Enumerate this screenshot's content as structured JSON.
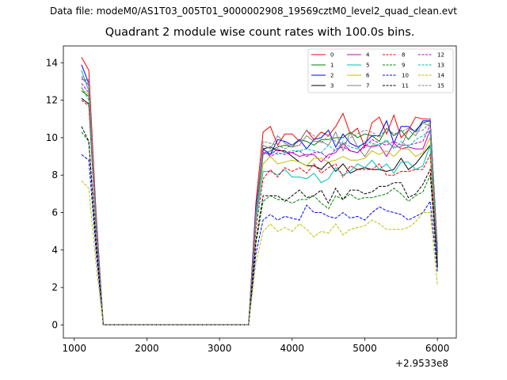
{
  "suptitle": "Data file: modeM0/AS1T03_005T01_9000002908_19569cztM0_level2_quad_clean.evt",
  "chart_data": {
    "type": "line",
    "title": "Quadrant 2 module wise count rates with 100.0s bins.",
    "xlabel": "",
    "ylabel": "",
    "x_offset_label": "+2.9533e8",
    "xlim": [
      850,
      6260
    ],
    "ylim": [
      -0.7,
      14.9
    ],
    "xticks": [
      1000,
      2000,
      3000,
      4000,
      5000,
      6000
    ],
    "yticks": [
      0,
      2,
      4,
      6,
      8,
      10,
      12,
      14
    ],
    "grid": false,
    "legend_position": "top-right",
    "x": [
      1100,
      1200,
      1300,
      1400,
      1500,
      1600,
      1700,
      1800,
      1900,
      2000,
      2100,
      2200,
      2300,
      2400,
      2500,
      2600,
      2700,
      2800,
      2900,
      3000,
      3100,
      3200,
      3300,
      3400,
      3500,
      3600,
      3700,
      3800,
      3900,
      4000,
      4100,
      4200,
      4300,
      4400,
      4500,
      4600,
      4700,
      4800,
      4900,
      5000,
      5100,
      5200,
      5300,
      5400,
      5500,
      5600,
      5700,
      5800,
      5900,
      6000
    ],
    "series": [
      {
        "name": "0",
        "color": "#ff0000",
        "dash": "solid",
        "values": [
          14.3,
          13.6,
          6,
          0,
          0,
          0,
          0,
          0,
          0,
          0,
          0,
          0,
          0,
          0,
          0,
          0,
          0,
          0,
          0,
          0,
          0,
          0,
          0,
          0,
          6.5,
          10.3,
          10.6,
          9.6,
          10.2,
          10.2,
          9.8,
          10.4,
          9.9,
          10.3,
          10.1,
          10.6,
          11.3,
          10.2,
          10.5,
          9.5,
          10.8,
          11.1,
          10.2,
          11.2,
          10.0,
          10.4,
          11.1,
          11.0,
          11.0,
          3.8
        ]
      },
      {
        "name": "1",
        "color": "#008000",
        "dash": "solid",
        "values": [
          12.5,
          12.2,
          5.5,
          0,
          0,
          0,
          0,
          0,
          0,
          0,
          0,
          0,
          0,
          0,
          0,
          0,
          0,
          0,
          0,
          0,
          0,
          0,
          0,
          0,
          5.8,
          9.1,
          9.3,
          9.5,
          9.6,
          9.5,
          9.9,
          9.8,
          9.6,
          9.9,
          9.9,
          10.0,
          10.0,
          10.3,
          10.0,
          10.2,
          10.1,
          9.8,
          10.5,
          10.1,
          10.4,
          9.9,
          10.4,
          10.8,
          10.9,
          4.1
        ]
      },
      {
        "name": "2",
        "color": "#0000ff",
        "dash": "solid",
        "values": [
          13.9,
          12.9,
          5.8,
          0,
          0,
          0,
          0,
          0,
          0,
          0,
          0,
          0,
          0,
          0,
          0,
          0,
          0,
          0,
          0,
          0,
          0,
          0,
          0,
          0,
          6.3,
          9.4,
          9.1,
          9.9,
          9.8,
          9.6,
          9.9,
          9.4,
          9.9,
          10.0,
          10.4,
          9.5,
          10.2,
          9.7,
          9.5,
          9.7,
          10.1,
          10.1,
          10.9,
          9.7,
          10.6,
          10.6,
          10.3,
          10.9,
          10.9,
          4.0
        ]
      },
      {
        "name": "3",
        "color": "#000000",
        "dash": "solid",
        "values": [
          12.1,
          11.8,
          5.2,
          0,
          0,
          0,
          0,
          0,
          0,
          0,
          0,
          0,
          0,
          0,
          0,
          0,
          0,
          0,
          0,
          0,
          0,
          0,
          0,
          0,
          5.9,
          9.4,
          9.5,
          9.3,
          9.3,
          9.0,
          8.7,
          8.5,
          8.5,
          8.3,
          8.7,
          8.2,
          8.6,
          8.1,
          8.3,
          8.4,
          8.3,
          8.3,
          8.2,
          8.3,
          8.9,
          8.3,
          8.6,
          9.1,
          9.6,
          3.2
        ]
      },
      {
        "name": "4",
        "color": "#bf00bf",
        "dash": "solid",
        "values": [
          13.2,
          12.8,
          5.6,
          0,
          0,
          0,
          0,
          0,
          0,
          0,
          0,
          0,
          0,
          0,
          0,
          0,
          0,
          0,
          0,
          0,
          0,
          0,
          0,
          0,
          6.1,
          9.2,
          9.1,
          9.4,
          9.2,
          9.2,
          9.0,
          9.1,
          9.1,
          8.7,
          9.1,
          9.2,
          9.7,
          9.3,
          9.2,
          9.6,
          9.5,
          9.6,
          9.0,
          9.7,
          9.4,
          9.5,
          9.4,
          9.4,
          10.4,
          3.9
        ]
      },
      {
        "name": "5",
        "color": "#00bfbf",
        "dash": "solid",
        "values": [
          13.6,
          12.5,
          5.4,
          0,
          0,
          0,
          0,
          0,
          0,
          0,
          0,
          0,
          0,
          0,
          0,
          0,
          0,
          0,
          0,
          0,
          0,
          0,
          0,
          0,
          5.5,
          8.2,
          8.2,
          8.0,
          8.3,
          7.9,
          7.9,
          7.8,
          8.1,
          7.6,
          7.8,
          8.4,
          8.0,
          8.2,
          8.6,
          8.4,
          8.8,
          8.3,
          8.6,
          8.1,
          8.7,
          8.7,
          8.3,
          8.5,
          9.6,
          3.6
        ]
      },
      {
        "name": "6",
        "color": "#bfbf00",
        "dash": "solid",
        "values": [
          12.6,
          12.3,
          5.3,
          0,
          0,
          0,
          0,
          0,
          0,
          0,
          0,
          0,
          0,
          0,
          0,
          0,
          0,
          0,
          0,
          0,
          0,
          0,
          0,
          0,
          5.7,
          8.6,
          9.0,
          8.6,
          8.7,
          8.8,
          8.7,
          8.5,
          8.9,
          8.9,
          8.7,
          8.8,
          9.0,
          8.8,
          8.8,
          8.9,
          9.3,
          9.1,
          9.3,
          9.0,
          9.4,
          9.4,
          9.0,
          9.2,
          10.0,
          3.7
        ]
      },
      {
        "name": "7",
        "color": "#808080",
        "dash": "solid",
        "values": [
          13.1,
          13.1,
          5.7,
          0,
          0,
          0,
          0,
          0,
          0,
          0,
          0,
          0,
          0,
          0,
          0,
          0,
          0,
          0,
          0,
          0,
          0,
          0,
          0,
          0,
          6.0,
          9.6,
          9.4,
          10.1,
          9.7,
          9.5,
          9.6,
          10.1,
          9.8,
          9.8,
          9.6,
          10.3,
          9.3,
          10.3,
          9.5,
          9.0,
          9.6,
          9.6,
          9.8,
          9.5,
          9.5,
          10.4,
          10.1,
          10.8,
          10.6,
          3.8
        ]
      },
      {
        "name": "8",
        "color": "#ff0000",
        "dash": "dashed",
        "values": [
          12.0,
          11.7,
          5.1,
          0,
          0,
          0,
          0,
          0,
          0,
          0,
          0,
          0,
          0,
          0,
          0,
          0,
          0,
          0,
          0,
          0,
          0,
          0,
          0,
          0,
          5.1,
          7.8,
          8.3,
          7.9,
          8.4,
          8.2,
          8.4,
          8.1,
          8.6,
          8.1,
          8.4,
          8.6,
          7.9,
          8.5,
          8.3,
          8.3,
          8.3,
          8.6,
          8.0,
          8.0,
          8.2,
          8.2,
          8.3,
          8.3,
          9.1,
          3.4
        ]
      },
      {
        "name": "9",
        "color": "#008000",
        "dash": "dashed",
        "values": [
          10.3,
          9.8,
          4.3,
          0,
          0,
          0,
          0,
          0,
          0,
          0,
          0,
          0,
          0,
          0,
          0,
          0,
          0,
          0,
          0,
          0,
          0,
          0,
          0,
          0,
          4.3,
          6.6,
          6.9,
          6.7,
          6.7,
          6.5,
          6.7,
          6.7,
          6.9,
          6.5,
          6.2,
          6.9,
          6.7,
          7.0,
          6.7,
          6.8,
          6.8,
          6.9,
          7.0,
          7.3,
          7.0,
          6.6,
          6.9,
          7.1,
          8.0,
          3.0
        ]
      },
      {
        "name": "10",
        "color": "#0000ff",
        "dash": "dashed",
        "values": [
          9.1,
          8.8,
          3.9,
          0,
          0,
          0,
          0,
          0,
          0,
          0,
          0,
          0,
          0,
          0,
          0,
          0,
          0,
          0,
          0,
          0,
          0,
          0,
          0,
          0,
          3.8,
          5.6,
          5.9,
          5.6,
          5.8,
          5.7,
          5.6,
          6.4,
          6.0,
          6.0,
          5.8,
          5.7,
          6.0,
          5.7,
          5.8,
          5.6,
          6.0,
          6.3,
          6.1,
          6.0,
          5.9,
          5.6,
          5.8,
          6.0,
          6.6,
          2.8
        ]
      },
      {
        "name": "11",
        "color": "#000000",
        "dash": "dashed",
        "values": [
          10.6,
          9.8,
          4.4,
          0,
          0,
          0,
          0,
          0,
          0,
          0,
          0,
          0,
          0,
          0,
          0,
          0,
          0,
          0,
          0,
          0,
          0,
          0,
          0,
          0,
          4.5,
          6.9,
          6.9,
          6.9,
          6.6,
          6.9,
          7.2,
          6.8,
          6.9,
          7.2,
          6.5,
          7.3,
          6.7,
          7.2,
          7.2,
          7.0,
          7.1,
          7.4,
          7.4,
          7.6,
          7.6,
          6.8,
          7.0,
          7.5,
          8.3,
          3.1
        ]
      },
      {
        "name": "12",
        "color": "#bf00bf",
        "dash": "dashed",
        "values": [
          12.9,
          12.4,
          5.5,
          0,
          0,
          0,
          0,
          0,
          0,
          0,
          0,
          0,
          0,
          0,
          0,
          0,
          0,
          0,
          0,
          0,
          0,
          0,
          0,
          0,
          5.7,
          9.3,
          9.0,
          9.2,
          9.1,
          9.2,
          9.3,
          9.0,
          9.2,
          9.2,
          8.9,
          9.4,
          9.5,
          9.3,
          9.2,
          9.5,
          9.9,
          9.7,
          9.6,
          9.8,
          9.6,
          9.6,
          9.7,
          9.8,
          10.7,
          3.9
        ]
      },
      {
        "name": "13",
        "color": "#00bfbf",
        "dash": "dashed",
        "values": [
          12.7,
          12.0,
          5.3,
          0,
          0,
          0,
          0,
          0,
          0,
          0,
          0,
          0,
          0,
          0,
          0,
          0,
          0,
          0,
          0,
          0,
          0,
          0,
          0,
          0,
          5.6,
          9.1,
          9.3,
          9.1,
          9.2,
          9.3,
          9.3,
          9.4,
          9.3,
          9.2,
          9.6,
          9.3,
          9.8,
          9.5,
          9.4,
          9.8,
          9.7,
          9.6,
          9.9,
          9.4,
          9.8,
          9.5,
          9.9,
          10.1,
          10.4,
          3.8
        ]
      },
      {
        "name": "14",
        "color": "#bfbf00",
        "dash": "dashed",
        "values": [
          7.7,
          7.3,
          3.2,
          0,
          0,
          0,
          0,
          0,
          0,
          0,
          0,
          0,
          0,
          0,
          0,
          0,
          0,
          0,
          0,
          0,
          0,
          0,
          0,
          0,
          3.3,
          5.0,
          5.4,
          5.0,
          5.2,
          5.0,
          5.4,
          5.1,
          4.7,
          5.0,
          4.9,
          5.4,
          4.8,
          5.1,
          5.2,
          5.3,
          5.6,
          5.4,
          5.1,
          5.1,
          5.1,
          5.2,
          5.5,
          6.0,
          6.0,
          2.1
        ]
      },
      {
        "name": "15",
        "color": "#808080",
        "dash": "dashed",
        "values": [
          13.3,
          12.9,
          5.7,
          0,
          0,
          0,
          0,
          0,
          0,
          0,
          0,
          0,
          0,
          0,
          0,
          0,
          0,
          0,
          0,
          0,
          0,
          0,
          0,
          0,
          6.0,
          9.8,
          9.7,
          9.6,
          9.4,
          9.6,
          9.8,
          10.4,
          10.1,
          9.7,
          10.1,
          9.8,
          9.6,
          10.0,
          10.2,
          10.4,
          10.3,
          10.0,
          10.5,
          10.2,
          10.3,
          10.5,
          10.3,
          10.4,
          10.8,
          4.1
        ]
      }
    ]
  }
}
